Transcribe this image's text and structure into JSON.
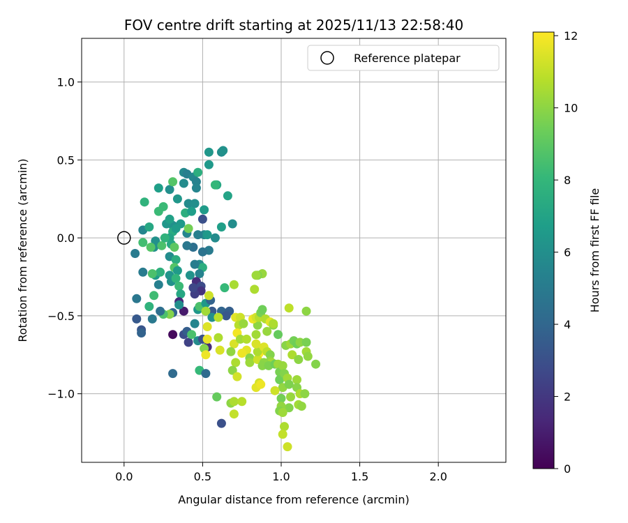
{
  "chart_data": {
    "type": "scatter",
    "title": "FOV centre drift starting at 2025/11/13 22:58:40",
    "xlabel": "Angular distance from reference (arcmin)",
    "ylabel": "Rotation from reference (arcmin)",
    "xlim": [
      -0.27,
      2.43
    ],
    "ylim": [
      -1.44,
      1.28
    ],
    "xticks": [
      0.0,
      0.5,
      1.0,
      1.5,
      2.0
    ],
    "xtick_labels": [
      "0.0",
      "0.5",
      "1.0",
      "1.5",
      "2.0"
    ],
    "yticks": [
      -1.0,
      -0.5,
      0.0,
      0.5,
      1.0
    ],
    "ytick_labels": [
      "−1.0",
      "−0.5",
      "0.0",
      "0.5",
      "1.0"
    ],
    "grid": true,
    "legend": {
      "position": "top-right",
      "entries": [
        "Reference platepar"
      ]
    },
    "reference_point": {
      "label": "Reference platepar",
      "x": 0.0,
      "y": 0.0
    },
    "colorbar": {
      "label": "Hours from first FF file",
      "range": [
        0,
        12.1
      ],
      "ticks": [
        0,
        2,
        4,
        6,
        8,
        10,
        12
      ],
      "tick_labels": [
        "0",
        "2",
        "4",
        "6",
        "8",
        "10",
        "12"
      ],
      "colormap": [
        "#440154",
        "#482878",
        "#3e4989",
        "#31688e",
        "#26828e",
        "#1f9e89",
        "#35b779",
        "#6ece58",
        "#b5de2b",
        "#fde725"
      ]
    },
    "points": [
      [
        0.12,
        0.05,
        5.5
      ],
      [
        0.07,
        -0.1,
        5.0
      ],
      [
        0.13,
        0.23,
        7.8
      ],
      [
        0.16,
        0.07,
        7.2
      ],
      [
        0.22,
        0.32,
        6.8
      ],
      [
        0.25,
        0.2,
        8.2
      ],
      [
        0.29,
        0.31,
        6.0
      ],
      [
        0.31,
        0.36,
        8.8
      ],
      [
        0.34,
        0.25,
        6.4
      ],
      [
        0.38,
        0.35,
        5.8
      ],
      [
        0.38,
        0.42,
        5.7
      ],
      [
        0.4,
        0.41,
        5.2
      ],
      [
        0.44,
        0.39,
        5.6
      ],
      [
        0.46,
        0.36,
        5.4
      ],
      [
        0.47,
        0.42,
        7.6
      ],
      [
        0.46,
        0.32,
        5.5
      ],
      [
        0.41,
        0.22,
        5.8
      ],
      [
        0.45,
        0.22,
        6.0
      ],
      [
        0.54,
        0.55,
        6.4
      ],
      [
        0.62,
        0.55,
        5.9
      ],
      [
        0.63,
        0.56,
        6.1
      ],
      [
        0.54,
        0.47,
        6.5
      ],
      [
        0.59,
        0.34,
        7.2
      ],
      [
        0.58,
        0.34,
        8.0
      ],
      [
        0.66,
        0.27,
        7.0
      ],
      [
        0.69,
        0.09,
        5.9
      ],
      [
        0.62,
        0.07,
        6.8
      ],
      [
        0.58,
        0.0,
        5.8
      ],
      [
        0.51,
        0.18,
        6.6
      ],
      [
        0.5,
        0.12,
        3.0
      ],
      [
        0.51,
        0.02,
        5.6
      ],
      [
        0.47,
        0.02,
        5.2
      ],
      [
        0.53,
        0.02,
        6.5
      ],
      [
        0.54,
        -0.08,
        5.0
      ],
      [
        0.5,
        -0.09,
        4.6
      ],
      [
        0.48,
        -0.17,
        5.8
      ],
      [
        0.5,
        -0.19,
        7.6
      ],
      [
        0.45,
        -0.17,
        5.1
      ],
      [
        0.42,
        -0.24,
        6.2
      ],
      [
        0.48,
        -0.23,
        5.4
      ],
      [
        0.46,
        -0.28,
        1.6
      ],
      [
        0.49,
        -0.31,
        2.8
      ],
      [
        0.49,
        -0.34,
        1.8
      ],
      [
        0.45,
        -0.36,
        2.3
      ],
      [
        0.44,
        -0.32,
        2.6
      ],
      [
        0.44,
        -0.06,
        4.4
      ],
      [
        0.4,
        -0.05,
        4.8
      ],
      [
        0.4,
        0.03,
        5.5
      ],
      [
        0.41,
        0.06,
        9.5
      ],
      [
        0.39,
        0.16,
        7.6
      ],
      [
        0.43,
        0.17,
        6.7
      ],
      [
        0.36,
        0.09,
        6.5
      ],
      [
        0.31,
        0.08,
        6.0
      ],
      [
        0.31,
        0.04,
        7.4
      ],
      [
        0.29,
        0.0,
        7.0
      ],
      [
        0.27,
        0.09,
        6.4
      ],
      [
        0.22,
        0.17,
        8.2
      ],
      [
        0.29,
        0.12,
        6.9
      ],
      [
        0.33,
        0.06,
        6.6
      ],
      [
        0.3,
        -0.04,
        7.2
      ],
      [
        0.29,
        -0.12,
        5.9
      ],
      [
        0.32,
        -0.06,
        9.0
      ],
      [
        0.33,
        -0.14,
        7.5
      ],
      [
        0.32,
        -0.19,
        8.8
      ],
      [
        0.34,
        -0.21,
        6.6
      ],
      [
        0.29,
        -0.24,
        6.3
      ],
      [
        0.3,
        -0.28,
        6.1
      ],
      [
        0.33,
        -0.26,
        7.9
      ],
      [
        0.35,
        -0.31,
        8.2
      ],
      [
        0.36,
        -0.36,
        7.2
      ],
      [
        0.35,
        -0.41,
        1.4
      ],
      [
        0.38,
        -0.47,
        0.9
      ],
      [
        0.35,
        -0.43,
        6.0
      ],
      [
        0.31,
        -0.48,
        3.9
      ],
      [
        0.29,
        -0.49,
        9.8
      ],
      [
        0.25,
        -0.49,
        8.6
      ],
      [
        0.23,
        -0.47,
        4.4
      ],
      [
        0.18,
        -0.52,
        4.9
      ],
      [
        0.16,
        -0.44,
        7.8
      ],
      [
        0.19,
        -0.37,
        8.3
      ],
      [
        0.22,
        -0.3,
        5.2
      ],
      [
        0.2,
        -0.24,
        6.6
      ],
      [
        0.23,
        -0.22,
        7.7
      ],
      [
        0.18,
        -0.23,
        8.6
      ],
      [
        0.12,
        -0.22,
        5.0
      ],
      [
        0.19,
        -0.06,
        6.0
      ],
      [
        0.2,
        -0.02,
        6.1
      ],
      [
        0.17,
        -0.06,
        8.8
      ],
      [
        0.12,
        -0.03,
        8.4
      ],
      [
        0.24,
        -0.05,
        8.6
      ],
      [
        0.26,
        0.0,
        7.8
      ],
      [
        0.08,
        -0.39,
        4.8
      ],
      [
        0.08,
        -0.52,
        3.4
      ],
      [
        0.11,
        -0.59,
        3.2
      ],
      [
        0.11,
        -0.61,
        3.8
      ],
      [
        0.31,
        -0.62,
        0.3
      ],
      [
        0.31,
        -0.87,
        4.2
      ],
      [
        0.38,
        -0.62,
        2.9
      ],
      [
        0.4,
        -0.6,
        3.6
      ],
      [
        0.41,
        -0.67,
        2.4
      ],
      [
        0.43,
        -0.62,
        8.6
      ],
      [
        0.47,
        -0.66,
        5.8
      ],
      [
        0.5,
        -0.65,
        3.0
      ],
      [
        0.53,
        -0.7,
        1.5
      ],
      [
        0.51,
        -0.71,
        9.8
      ],
      [
        0.48,
        -0.85,
        8.1
      ],
      [
        0.52,
        -0.87,
        4.2
      ],
      [
        0.62,
        -1.19,
        3.0
      ],
      [
        0.45,
        -0.55,
        5.5
      ],
      [
        0.47,
        -0.46,
        6.4
      ],
      [
        0.48,
        -0.44,
        8.6
      ],
      [
        0.52,
        -0.42,
        6.5
      ],
      [
        0.55,
        -0.4,
        3.8
      ],
      [
        0.54,
        -0.37,
        11.2
      ],
      [
        0.56,
        -0.47,
        3.4
      ],
      [
        0.62,
        -0.47,
        3.9
      ],
      [
        0.67,
        -0.47,
        3.6
      ],
      [
        0.65,
        -0.5,
        3.3
      ],
      [
        0.52,
        -0.47,
        10.4
      ],
      [
        0.56,
        -0.51,
        6.0
      ],
      [
        0.53,
        -0.57,
        11.5
      ],
      [
        0.53,
        -0.65,
        11.7
      ],
      [
        0.52,
        -0.75,
        11.8
      ],
      [
        0.6,
        -0.51,
        10.8
      ],
      [
        0.71,
        -0.51,
        11.6
      ],
      [
        0.74,
        -0.51,
        11.2
      ],
      [
        0.73,
        -0.56,
        10.8
      ],
      [
        0.76,
        -0.55,
        10.2
      ],
      [
        0.72,
        -0.61,
        11.9
      ],
      [
        0.7,
        -0.68,
        11.4
      ],
      [
        0.68,
        -0.73,
        10.1
      ],
      [
        0.61,
        -0.72,
        11.4
      ],
      [
        0.6,
        -0.64,
        10.6
      ],
      [
        0.74,
        -0.65,
        10.4
      ],
      [
        0.78,
        -0.65,
        10.7
      ],
      [
        0.78,
        -0.72,
        11.6
      ],
      [
        0.75,
        -0.74,
        11.8
      ],
      [
        0.8,
        -0.77,
        9.9
      ],
      [
        0.8,
        -0.8,
        10.3
      ],
      [
        0.71,
        -0.8,
        10.6
      ],
      [
        0.69,
        -0.85,
        10.0
      ],
      [
        0.72,
        -0.89,
        11.3
      ],
      [
        0.59,
        -1.02,
        9.2
      ],
      [
        0.68,
        -1.06,
        10.0
      ],
      [
        0.7,
        -1.05,
        10.6
      ],
      [
        0.7,
        -1.13,
        11.0
      ],
      [
        0.75,
        -1.05,
        10.8
      ],
      [
        0.86,
        -0.93,
        11.3
      ],
      [
        0.84,
        -0.96,
        11.6
      ],
      [
        0.87,
        -0.94,
        11.8
      ],
      [
        0.86,
        -0.74,
        12.0
      ],
      [
        0.85,
        -0.78,
        11.2
      ],
      [
        0.85,
        -0.73,
        10.6
      ],
      [
        0.84,
        -0.68,
        11.4
      ],
      [
        0.84,
        -0.62,
        10.4
      ],
      [
        0.85,
        -0.56,
        10.0
      ],
      [
        0.82,
        -0.52,
        11.8
      ],
      [
        0.84,
        -0.51,
        11.3
      ],
      [
        0.86,
        -0.51,
        10.8
      ],
      [
        0.87,
        -0.48,
        9.6
      ],
      [
        0.88,
        -0.46,
        9.4
      ],
      [
        0.9,
        -0.52,
        10.7
      ],
      [
        0.93,
        -0.54,
        11.6
      ],
      [
        0.91,
        -0.6,
        10.2
      ],
      [
        0.89,
        -0.7,
        11.5
      ],
      [
        0.91,
        -0.73,
        10.9
      ],
      [
        0.93,
        -0.75,
        9.8
      ],
      [
        0.93,
        -0.79,
        10.1
      ],
      [
        0.94,
        -0.8,
        10.4
      ],
      [
        0.89,
        -0.8,
        10.0
      ],
      [
        0.88,
        -0.82,
        9.9
      ],
      [
        0.92,
        -0.82,
        9.7
      ],
      [
        0.96,
        -0.81,
        9.4
      ],
      [
        0.98,
        -0.81,
        10.3
      ],
      [
        0.99,
        -0.86,
        9.6
      ],
      [
        0.99,
        -0.91,
        9.4
      ],
      [
        1.01,
        -0.82,
        10.2
      ],
      [
        1.02,
        -0.87,
        9.8
      ],
      [
        1.01,
        -0.96,
        10.1
      ],
      [
        1.04,
        -0.9,
        10.4
      ],
      [
        1.05,
        -0.94,
        9.7
      ],
      [
        1.0,
        -1.03,
        9.5
      ],
      [
        1.06,
        -1.02,
        10.2
      ],
      [
        1.05,
        -1.09,
        9.8
      ],
      [
        1.0,
        -1.08,
        10.1
      ],
      [
        0.96,
        -0.98,
        11.2
      ],
      [
        0.99,
        -1.11,
        9.8
      ],
      [
        1.01,
        -1.12,
        10.3
      ],
      [
        1.02,
        -1.21,
        10.6
      ],
      [
        1.01,
        -1.26,
        11.0
      ],
      [
        1.04,
        -1.34,
        11.2
      ],
      [
        1.1,
        -0.91,
        10.3
      ],
      [
        1.1,
        -0.96,
        9.9
      ],
      [
        1.12,
        -1.0,
        10.6
      ],
      [
        1.15,
        -1.0,
        10.0
      ],
      [
        1.11,
        -1.07,
        10.4
      ],
      [
        1.13,
        -1.08,
        10.1
      ],
      [
        1.03,
        -0.69,
        9.9
      ],
      [
        1.06,
        -0.68,
        10.3
      ],
      [
        1.08,
        -0.66,
        9.5
      ],
      [
        1.1,
        -0.68,
        9.4
      ],
      [
        1.12,
        -0.67,
        10.0
      ],
      [
        1.16,
        -0.67,
        9.6
      ],
      [
        1.07,
        -0.75,
        10.6
      ],
      [
        1.11,
        -0.78,
        10.0
      ],
      [
        1.16,
        -0.73,
        10.4
      ],
      [
        1.17,
        -0.76,
        10.1
      ],
      [
        1.22,
        -0.81,
        9.8
      ],
      [
        1.05,
        -0.45,
        10.9
      ],
      [
        1.16,
        -0.47,
        10.0
      ],
      [
        0.95,
        -0.56,
        10.0
      ],
      [
        0.95,
        -0.55,
        10.6
      ],
      [
        0.98,
        -0.62,
        9.2
      ],
      [
        0.88,
        -0.23,
        10.2
      ],
      [
        0.85,
        -0.24,
        9.8
      ],
      [
        0.83,
        -0.33,
        10.6
      ],
      [
        0.7,
        -0.3,
        10.5
      ],
      [
        0.64,
        -0.32,
        8.1
      ],
      [
        0.84,
        -0.24,
        10.3
      ]
    ]
  }
}
